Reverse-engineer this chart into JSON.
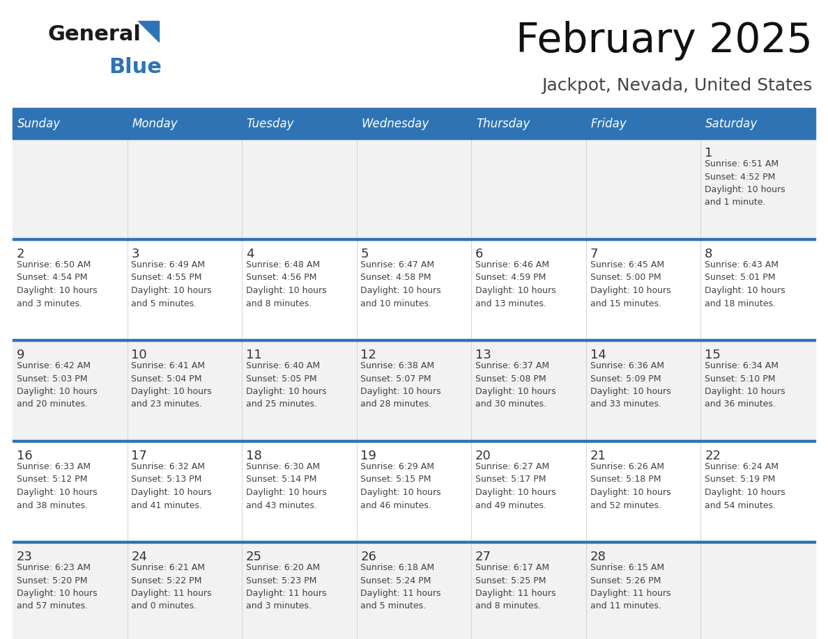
{
  "title": "February 2025",
  "subtitle": "Jackpot, Nevada, United States",
  "days_of_week": [
    "Sunday",
    "Monday",
    "Tuesday",
    "Wednesday",
    "Thursday",
    "Friday",
    "Saturday"
  ],
  "header_bg": "#2E74B5",
  "header_text_color": "#FFFFFF",
  "row_bg_odd": "#F2F2F2",
  "row_bg_even": "#FFFFFF",
  "separator_color": "#2E74B5",
  "text_color": "#404040",
  "day_num_color": "#333333",
  "calendar_data": [
    {
      "day": 1,
      "col": 6,
      "row": 0,
      "sunrise": "6:51 AM",
      "sunset": "4:52 PM",
      "daylight": "10 hours and 1 minute."
    },
    {
      "day": 2,
      "col": 0,
      "row": 1,
      "sunrise": "6:50 AM",
      "sunset": "4:54 PM",
      "daylight": "10 hours and 3 minutes."
    },
    {
      "day": 3,
      "col": 1,
      "row": 1,
      "sunrise": "6:49 AM",
      "sunset": "4:55 PM",
      "daylight": "10 hours and 5 minutes."
    },
    {
      "day": 4,
      "col": 2,
      "row": 1,
      "sunrise": "6:48 AM",
      "sunset": "4:56 PM",
      "daylight": "10 hours and 8 minutes."
    },
    {
      "day": 5,
      "col": 3,
      "row": 1,
      "sunrise": "6:47 AM",
      "sunset": "4:58 PM",
      "daylight": "10 hours and 10 minutes."
    },
    {
      "day": 6,
      "col": 4,
      "row": 1,
      "sunrise": "6:46 AM",
      "sunset": "4:59 PM",
      "daylight": "10 hours and 13 minutes."
    },
    {
      "day": 7,
      "col": 5,
      "row": 1,
      "sunrise": "6:45 AM",
      "sunset": "5:00 PM",
      "daylight": "10 hours and 15 minutes."
    },
    {
      "day": 8,
      "col": 6,
      "row": 1,
      "sunrise": "6:43 AM",
      "sunset": "5:01 PM",
      "daylight": "10 hours and 18 minutes."
    },
    {
      "day": 9,
      "col": 0,
      "row": 2,
      "sunrise": "6:42 AM",
      "sunset": "5:03 PM",
      "daylight": "10 hours and 20 minutes."
    },
    {
      "day": 10,
      "col": 1,
      "row": 2,
      "sunrise": "6:41 AM",
      "sunset": "5:04 PM",
      "daylight": "10 hours and 23 minutes."
    },
    {
      "day": 11,
      "col": 2,
      "row": 2,
      "sunrise": "6:40 AM",
      "sunset": "5:05 PM",
      "daylight": "10 hours and 25 minutes."
    },
    {
      "day": 12,
      "col": 3,
      "row": 2,
      "sunrise": "6:38 AM",
      "sunset": "5:07 PM",
      "daylight": "10 hours and 28 minutes."
    },
    {
      "day": 13,
      "col": 4,
      "row": 2,
      "sunrise": "6:37 AM",
      "sunset": "5:08 PM",
      "daylight": "10 hours and 30 minutes."
    },
    {
      "day": 14,
      "col": 5,
      "row": 2,
      "sunrise": "6:36 AM",
      "sunset": "5:09 PM",
      "daylight": "10 hours and 33 minutes."
    },
    {
      "day": 15,
      "col": 6,
      "row": 2,
      "sunrise": "6:34 AM",
      "sunset": "5:10 PM",
      "daylight": "10 hours and 36 minutes."
    },
    {
      "day": 16,
      "col": 0,
      "row": 3,
      "sunrise": "6:33 AM",
      "sunset": "5:12 PM",
      "daylight": "10 hours and 38 minutes."
    },
    {
      "day": 17,
      "col": 1,
      "row": 3,
      "sunrise": "6:32 AM",
      "sunset": "5:13 PM",
      "daylight": "10 hours and 41 minutes."
    },
    {
      "day": 18,
      "col": 2,
      "row": 3,
      "sunrise": "6:30 AM",
      "sunset": "5:14 PM",
      "daylight": "10 hours and 43 minutes."
    },
    {
      "day": 19,
      "col": 3,
      "row": 3,
      "sunrise": "6:29 AM",
      "sunset": "5:15 PM",
      "daylight": "10 hours and 46 minutes."
    },
    {
      "day": 20,
      "col": 4,
      "row": 3,
      "sunrise": "6:27 AM",
      "sunset": "5:17 PM",
      "daylight": "10 hours and 49 minutes."
    },
    {
      "day": 21,
      "col": 5,
      "row": 3,
      "sunrise": "6:26 AM",
      "sunset": "5:18 PM",
      "daylight": "10 hours and 52 minutes."
    },
    {
      "day": 22,
      "col": 6,
      "row": 3,
      "sunrise": "6:24 AM",
      "sunset": "5:19 PM",
      "daylight": "10 hours and 54 minutes."
    },
    {
      "day": 23,
      "col": 0,
      "row": 4,
      "sunrise": "6:23 AM",
      "sunset": "5:20 PM",
      "daylight": "10 hours and 57 minutes."
    },
    {
      "day": 24,
      "col": 1,
      "row": 4,
      "sunrise": "6:21 AM",
      "sunset": "5:22 PM",
      "daylight": "11 hours and 0 minutes."
    },
    {
      "day": 25,
      "col": 2,
      "row": 4,
      "sunrise": "6:20 AM",
      "sunset": "5:23 PM",
      "daylight": "11 hours and 3 minutes."
    },
    {
      "day": 26,
      "col": 3,
      "row": 4,
      "sunrise": "6:18 AM",
      "sunset": "5:24 PM",
      "daylight": "11 hours and 5 minutes."
    },
    {
      "day": 27,
      "col": 4,
      "row": 4,
      "sunrise": "6:17 AM",
      "sunset": "5:25 PM",
      "daylight": "11 hours and 8 minutes."
    },
    {
      "day": 28,
      "col": 5,
      "row": 4,
      "sunrise": "6:15 AM",
      "sunset": "5:26 PM",
      "daylight": "11 hours and 11 minutes."
    }
  ],
  "num_rows": 5,
  "num_cols": 7,
  "logo_text_general": "General",
  "logo_text_blue": "Blue",
  "logo_triangle_color": "#2E74B5",
  "logo_general_color": "#1a1a1a"
}
